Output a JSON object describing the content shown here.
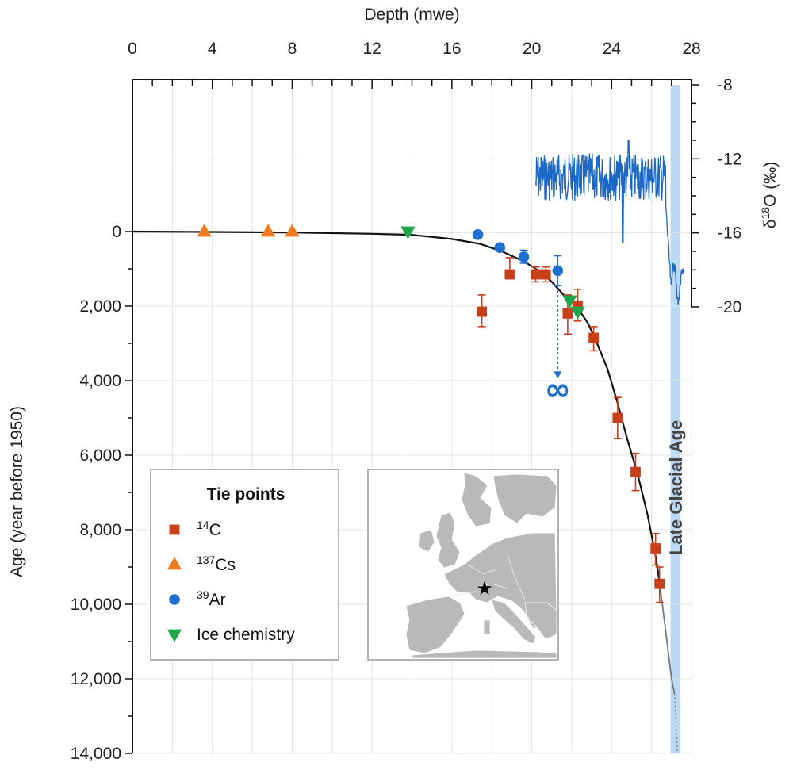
{
  "chart_data": {
    "type": "scatter",
    "x_axis": {
      "label": "Depth (mwe)",
      "position": "top",
      "range": [
        0,
        28
      ],
      "ticks": [
        "0",
        "4",
        "8",
        "12",
        "16",
        "20",
        "24",
        "28"
      ]
    },
    "y_axis_left": {
      "label": "Age (year before 1950)",
      "range": [
        0,
        14000
      ],
      "inverted": true,
      "ticks": [
        "0",
        "2,000",
        "4,000",
        "6,000",
        "8,000",
        "10,000",
        "12,000",
        "14,000"
      ]
    },
    "y_axis_right": {
      "label": "δ18O (‰)",
      "label_main": "δ",
      "label_sup": "18",
      "label_rest": "O (‰)",
      "range": [
        -20,
        -8
      ],
      "ticks": [
        "-8",
        "-12",
        "-16",
        "-20"
      ]
    },
    "shaded_band": {
      "label": "Late Glacial Age",
      "x_range": [
        26.95,
        27.45
      ],
      "color": "#bcd8f3"
    },
    "age_depth_curve": {
      "color": "#111111",
      "points": [
        [
          0,
          0
        ],
        [
          4,
          10
        ],
        [
          8,
          25
        ],
        [
          12,
          60
        ],
        [
          14,
          90
        ],
        [
          16,
          200
        ],
        [
          17.4,
          330
        ],
        [
          18.5,
          530
        ],
        [
          19.6,
          800
        ],
        [
          20.5,
          1100
        ],
        [
          21,
          1350
        ],
        [
          21.6,
          1700
        ],
        [
          22,
          1850
        ],
        [
          22.3,
          2050
        ],
        [
          22.8,
          2450
        ],
        [
          23.2,
          2900
        ],
        [
          23.8,
          3700
        ],
        [
          24.3,
          4600
        ],
        [
          24.8,
          5600
        ],
        [
          25.3,
          6500
        ],
        [
          25.8,
          7600
        ],
        [
          26.2,
          8700
        ],
        [
          26.4,
          9400
        ]
      ],
      "extension_color": "#777777",
      "extension": [
        [
          26.4,
          9400
        ],
        [
          26.7,
          10700
        ],
        [
          27.0,
          12000
        ],
        [
          27.15,
          12400
        ]
      ],
      "extension_dotted": [
        [
          27.15,
          12400
        ],
        [
          27.3,
          14000
        ]
      ]
    },
    "series": [
      {
        "name": "14C",
        "name_main": "",
        "name_sup": "14",
        "name_rest": "C",
        "marker": "square",
        "color": "#c8401a",
        "points": [
          {
            "x": 17.5,
            "y": 2150,
            "err": [
              1700,
              2550
            ]
          },
          {
            "x": 18.9,
            "y": 1150,
            "err": [
              700,
              1100
            ]
          },
          {
            "x": 20.2,
            "y": 1150,
            "err": [
              950,
              1350
            ]
          },
          {
            "x": 20.7,
            "y": 1150,
            "err": [
              950,
              1350
            ]
          },
          {
            "x": 21.8,
            "y": 2200,
            "err": [
              1700,
              2750
            ]
          },
          {
            "x": 22.3,
            "y": 2000,
            "err": [
              1550,
              2400
            ]
          },
          {
            "x": 23.1,
            "y": 2850,
            "err": [
              2550,
              3200
            ]
          },
          {
            "x": 24.3,
            "y": 5000,
            "err": [
              4450,
              5550
            ]
          },
          {
            "x": 25.2,
            "y": 6450,
            "err": [
              5950,
              6950
            ]
          },
          {
            "x": 26.2,
            "y": 8500,
            "err": [
              8100,
              8950
            ]
          },
          {
            "x": 26.4,
            "y": 9450,
            "err": [
              9000,
              9950
            ]
          }
        ]
      },
      {
        "name": "137Cs",
        "name_main": "",
        "name_sup": "137",
        "name_rest": "Cs",
        "marker": "triangle-up",
        "color": "#f07a20",
        "points": [
          {
            "x": 3.6,
            "y": 0
          },
          {
            "x": 6.8,
            "y": 0
          },
          {
            "x": 8.0,
            "y": 0
          }
        ]
      },
      {
        "name": "39Ar",
        "name_main": "",
        "name_sup": "39",
        "name_rest": "Ar",
        "marker": "circle",
        "color": "#1f6fd0",
        "points": [
          {
            "x": 17.3,
            "y": 80,
            "err": [
              0,
              160
            ]
          },
          {
            "x": 18.4,
            "y": 430,
            "err": [
              350,
              520
            ]
          },
          {
            "x": 19.6,
            "y": 680,
            "err": [
              500,
              850
            ]
          },
          {
            "x": 21.3,
            "y": 1050,
            "err": [
              650,
              1450
            ]
          }
        ]
      },
      {
        "name": "Ice chemistry",
        "name_main": "Ice chemistry",
        "name_sup": "",
        "name_rest": "",
        "marker": "triangle-down",
        "color": "#1fa64a",
        "points": [
          {
            "x": 13.8,
            "y": 0
          },
          {
            "x": 21.9,
            "y": 1850
          },
          {
            "x": 22.3,
            "y": 2150
          }
        ]
      }
    ],
    "infinity_marker": {
      "x": 21.3,
      "y_from": 1450,
      "y_to": 4050,
      "symbol": "∞",
      "color": "#1f6fd0"
    },
    "d18o_series": {
      "color": "#1a68c8",
      "axis": "right",
      "x_range": [
        20.2,
        27.6
      ]
    },
    "legend": {
      "title": "Tie points",
      "position": "lower-left",
      "entries": [
        "14C",
        "137Cs",
        "39Ar",
        "Ice chemistry"
      ]
    },
    "inset": {
      "description_marker": "★",
      "position": "lower-center"
    }
  }
}
